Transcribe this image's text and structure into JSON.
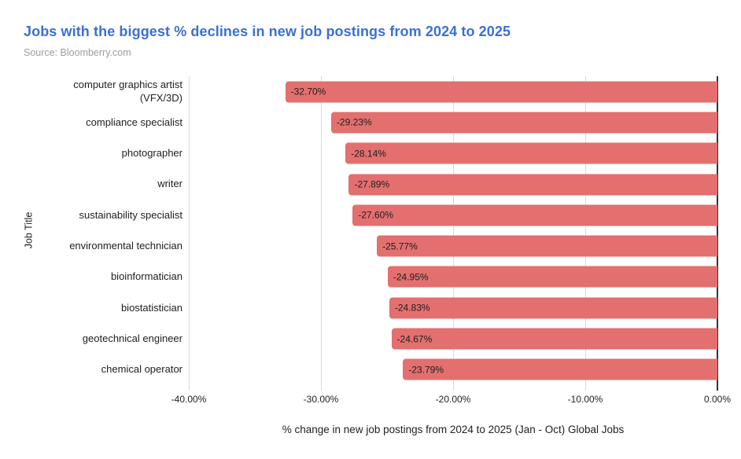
{
  "header": {
    "title": "Jobs with the biggest % declines in new job postings from 2024 to 2025",
    "source": "Source: Bloomberry.com"
  },
  "colors": {
    "title": "#3B6FD4",
    "source": "#9E9E9E",
    "bar": "#E36F6F",
    "bar_label_text": "#1F1F1F",
    "axis_text": "#212121",
    "category_text": "#212121",
    "gridline": "#DBDBDB",
    "zero_line": "#333333",
    "background": "#FFFFFF"
  },
  "chart_data": {
    "type": "bar",
    "orientation": "horizontal",
    "title": "Jobs with the biggest % declines in new job postings from 2024 to 2025",
    "categories": [
      "computer graphics artist (VFX/3D)",
      "compliance specialist",
      "photographer",
      "writer",
      "sustainability specialist",
      "environmental technician",
      "bioinformatician",
      "biostatistician",
      "geotechnical engineer",
      "chemical operator"
    ],
    "values": [
      -32.7,
      -29.23,
      -28.14,
      -27.89,
      -27.6,
      -25.77,
      -24.95,
      -24.83,
      -24.67,
      -23.79
    ],
    "bar_labels": [
      "-32.70%",
      "-29.23%",
      "-28.14%",
      "-27.89%",
      "-27.60%",
      "-25.77%",
      "-24.95%",
      "-24.83%",
      "-24.67%",
      "-23.79%"
    ],
    "xlabel": "% change in new job postings from 2024 to 2025 (Jan - Oct) Global Jobs",
    "ylabel": "Job Title",
    "xlim": [
      -40,
      0
    ],
    "xticks": [
      {
        "value": -40,
        "label": "-40.00%"
      },
      {
        "value": -30,
        "label": "-30.00%"
      },
      {
        "value": -20,
        "label": "-20.00%"
      },
      {
        "value": -10,
        "label": "-10.00%"
      },
      {
        "value": 0,
        "label": "0.00%"
      }
    ],
    "grid": true,
    "legend": false
  }
}
